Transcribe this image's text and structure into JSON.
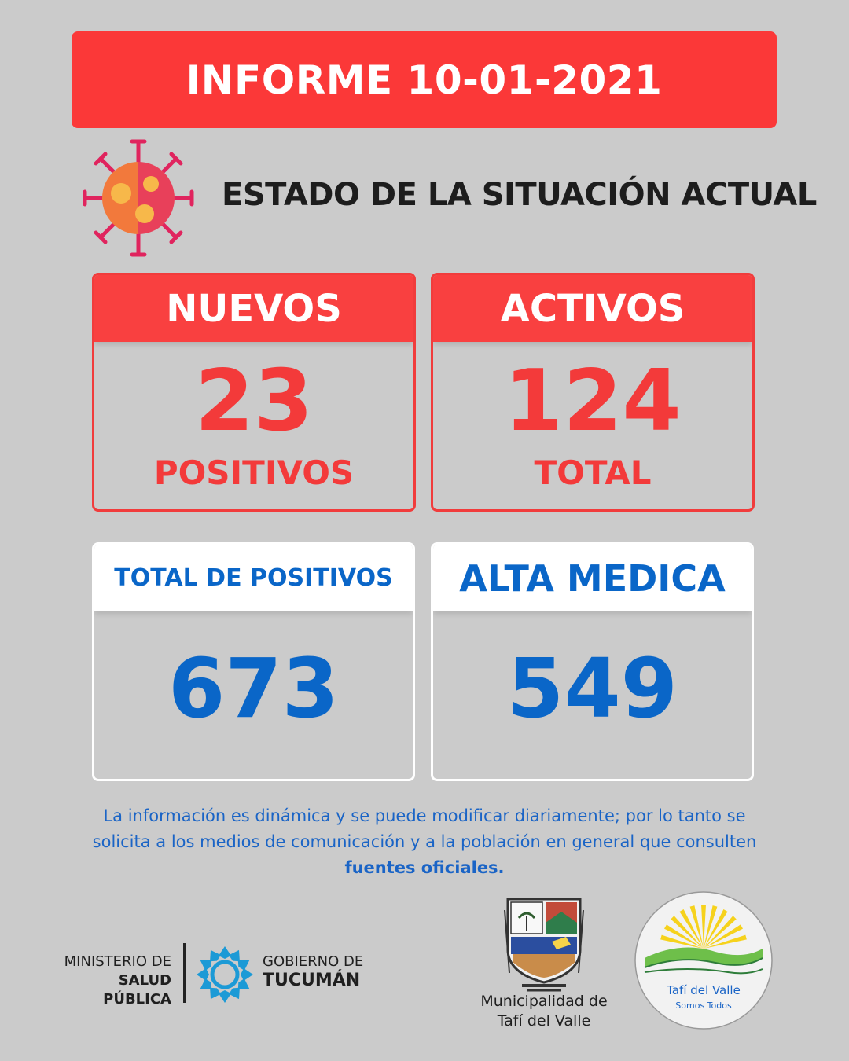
{
  "header": {
    "title": "INFORME 10-01-2021"
  },
  "subtitle": "ESTADO DE LA SITUACIÓN ACTUAL",
  "cards": {
    "nuevos": {
      "label": "NUEVOS",
      "value": "23",
      "caption": "POSITIVOS"
    },
    "activos": {
      "label": "ACTIVOS",
      "value": "124",
      "caption": "TOTAL"
    },
    "total_positivos": {
      "label": "TOTAL DE POSITIVOS",
      "value": "673"
    },
    "alta_medica": {
      "label": "ALTA MEDICA",
      "value": "549"
    }
  },
  "note": {
    "line1": "La información es dinámica y se puede modificar diariamente; por lo tanto se",
    "line2": "solicita a los medios de comunicación y a la población en general que consulten",
    "strong": "fuentes oficiales."
  },
  "footer": {
    "ministry_line1": "MINISTERIO DE",
    "ministry_line2": "SALUD PÚBLICA",
    "gobierno_line1": "GOBIERNO DE",
    "gobierno_line2": "TUCUMÁN",
    "muni_line1": "Municipalidad de",
    "muni_line2": "Tafí del Valle",
    "tafi_line1": "Tafí del Valle",
    "tafi_line2": "Somos Todos"
  },
  "colors": {
    "background": "#cbcbcb",
    "red": "#f94040",
    "blue": "#0a66c8"
  },
  "icons": [
    "virus-icon",
    "gobierno-tucuman-logo",
    "tafi-shield-emblem",
    "tafi-del-valle-logo"
  ]
}
